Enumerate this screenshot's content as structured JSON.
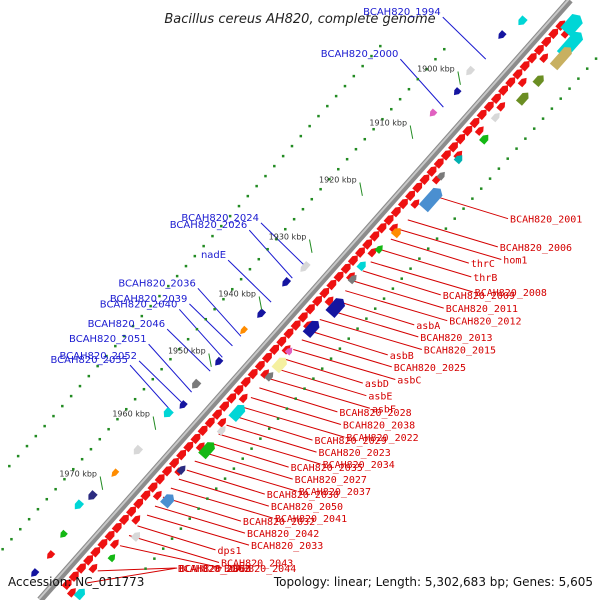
{
  "title": "Bacillus cereus AH820, complete genome",
  "accession": "Accession: NC_011773",
  "stats": "Topology: linear; Length: 5,302,683 bp; Genes: 5,605",
  "ticks": [
    {
      "label": "1900 kbp",
      "t": 0.17
    },
    {
      "label": "1910 kbp",
      "t": 0.26
    },
    {
      "label": "1920 kbp",
      "t": 0.355
    },
    {
      "label": "1930 kbp",
      "t": 0.45
    },
    {
      "label": "1940 kbp",
      "t": 0.545
    },
    {
      "label": "1950 kbp",
      "t": 0.64
    },
    {
      "label": "1960 kbp",
      "t": 0.745
    },
    {
      "label": "1970 kbp",
      "t": 0.845
    }
  ],
  "blue_labels": [
    {
      "name": "BCAH820_1994",
      "t": 0.125
    },
    {
      "name": "BCAH820_2000",
      "t": 0.205
    },
    {
      "name": "BCAH820_2024",
      "t": 0.468
    },
    {
      "name": "BCAH820_2026",
      "t": 0.49
    },
    {
      "name": "nadE",
      "t": 0.53
    },
    {
      "name": "BCAH820_2036",
      "t": 0.587
    },
    {
      "name": "BCAH820_2039",
      "t": 0.603
    },
    {
      "name": "BCAH820_2040",
      "t": 0.622
    },
    {
      "name": "BCAH820_2046",
      "t": 0.645
    },
    {
      "name": "BCAH820_2051",
      "t": 0.68
    },
    {
      "name": "BCAH820_2052",
      "t": 0.698
    },
    {
      "name": "BCAH820_2055",
      "t": 0.715
    }
  ],
  "red_labels": [
    {
      "name": "BCAH820_2001",
      "t": 0.298
    },
    {
      "name": "BCAH820_2006",
      "t": 0.34
    },
    {
      "name": "hom1",
      "t": 0.356
    },
    {
      "name": "thrC",
      "t": 0.372
    },
    {
      "name": "thrB",
      "t": 0.39
    },
    {
      "name": "BCAH820_2008",
      "t": 0.41
    },
    {
      "name": "BCAH820_2009",
      "t": 0.425
    },
    {
      "name": "BCAH820_2011",
      "t": 0.442
    },
    {
      "name": "BCAH820_2012",
      "t": 0.458
    },
    {
      "name": "asbA",
      "t": 0.475
    },
    {
      "name": "BCAH820_2013",
      "t": 0.49
    },
    {
      "name": "BCAH820_2015",
      "t": 0.506
    },
    {
      "name": "asbB",
      "t": 0.525
    },
    {
      "name": "BCAH820_2025",
      "t": 0.54
    },
    {
      "name": "asbC",
      "t": 0.556
    },
    {
      "name": "asbD",
      "t": 0.572
    },
    {
      "name": "asbE",
      "t": 0.588
    },
    {
      "name": "asbF",
      "t": 0.604
    },
    {
      "name": "BCAH820_2028",
      "t": 0.62
    },
    {
      "name": "BCAH820_2038",
      "t": 0.636
    },
    {
      "name": "BCAH820_2022",
      "t": 0.652
    },
    {
      "name": "BCAH820_2029",
      "t": 0.667
    },
    {
      "name": "BCAH820_2023",
      "t": 0.682
    },
    {
      "name": "BCAH820_2034",
      "t": 0.697
    },
    {
      "name": "BCAH820_2035",
      "t": 0.712
    },
    {
      "name": "BCAH820_2027",
      "t": 0.727
    },
    {
      "name": "BCAH820_2037",
      "t": 0.742
    },
    {
      "name": "BCAH820_2030",
      "t": 0.757
    },
    {
      "name": "BCAH820_2050",
      "t": 0.772
    },
    {
      "name": "BCAH820_2041",
      "t": 0.787
    },
    {
      "name": "BCAH820_2032",
      "t": 0.802
    },
    {
      "name": "BCAH820_2042",
      "t": 0.817
    },
    {
      "name": "BCAH820_2033",
      "t": 0.832
    },
    {
      "name": "dps1",
      "t": 0.85
    },
    {
      "name": "BCAH820_2043",
      "t": 0.866
    },
    {
      "name": "BCAH820_2044",
      "t": 0.883
    },
    {
      "name": "BCAH820_2062",
      "t": 0.925
    },
    {
      "name": "BCAH820_2063",
      "t": 0.945
    }
  ],
  "colors": {
    "backbone": "#8c8c8c",
    "cds": "#ee1111",
    "label_blue": "#1a1ad0",
    "label_red": "#d40000",
    "tick": "#228b22"
  }
}
